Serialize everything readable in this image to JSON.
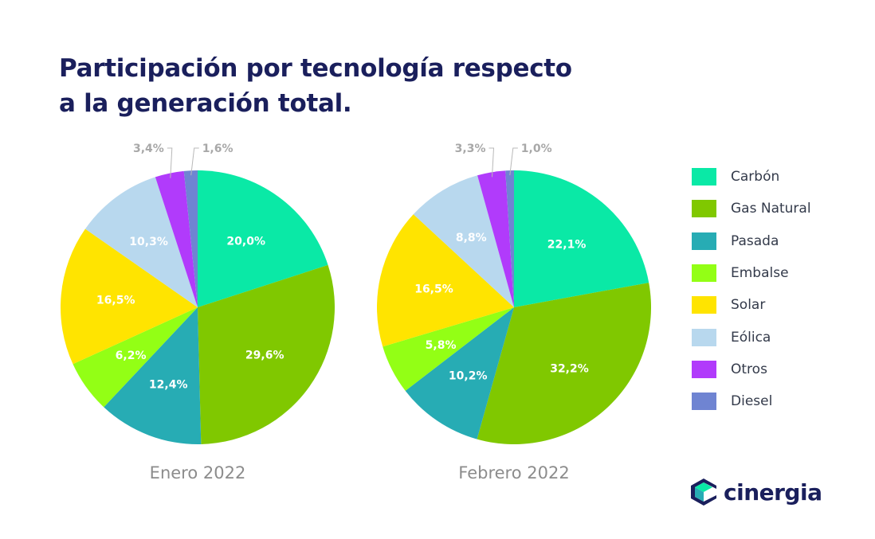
{
  "title": {
    "line1": "Participación por tecnología respecto",
    "line2": "a la generación total."
  },
  "colors": {
    "Carbón": "#0ae9a6",
    "Gas Natural": "#80c800",
    "Pasada": "#27acb4",
    "Embalse": "#93ff15",
    "Solar": "#ffe400",
    "Eólica": "#b8d8ee",
    "Otros": "#b13bfb",
    "Diesel": "#6f84d2"
  },
  "chart_data": [
    {
      "type": "pie",
      "title": "Enero 2022",
      "labels": [
        "Carbón",
        "Gas Natural",
        "Pasada",
        "Embalse",
        "Solar",
        "Eólica",
        "Otros",
        "Diesel"
      ],
      "values": [
        20.0,
        29.6,
        12.4,
        6.2,
        16.5,
        10.3,
        3.4,
        1.6
      ],
      "value_labels": [
        "20,0%",
        "29,6%",
        "12,4%",
        "6,2%",
        "16,5%",
        "10,3%",
        "3,4%",
        "1,6%"
      ]
    },
    {
      "type": "pie",
      "title": "Febrero 2022",
      "labels": [
        "Carbón",
        "Gas Natural",
        "Pasada",
        "Embalse",
        "Solar",
        "Eólica",
        "Otros",
        "Diesel"
      ],
      "values": [
        22.1,
        32.2,
        10.2,
        5.8,
        16.5,
        8.8,
        3.3,
        1.0
      ],
      "value_labels": [
        "22,1%",
        "32,2%",
        "10,2%",
        "5,8%",
        "16,5%",
        "8,8%",
        "3,3%",
        "1,0%"
      ]
    }
  ],
  "legend": [
    "Carbón",
    "Gas Natural",
    "Pasada",
    "Embalse",
    "Solar",
    "Eólica",
    "Otros",
    "Diesel"
  ],
  "logo": {
    "text": "cinergia"
  }
}
